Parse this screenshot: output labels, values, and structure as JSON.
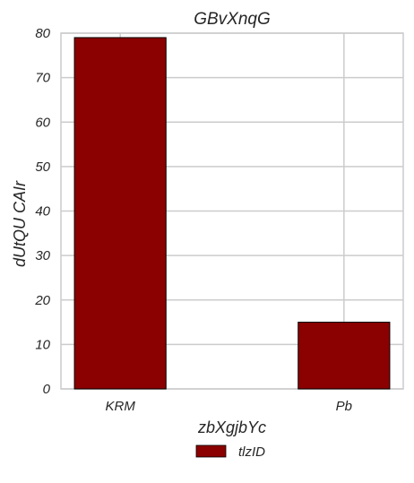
{
  "chart_data": {
    "type": "bar",
    "title": "GBvXnqG",
    "xlabel": "zbXgjbYc",
    "ylabel": "dUtQU CAIr",
    "categories": [
      "KRM",
      "Pb"
    ],
    "series": [
      {
        "name": "tlzID",
        "values": [
          79,
          15
        ],
        "color": "#8b0000"
      }
    ],
    "ylim": [
      0,
      80
    ],
    "yticks": [
      0,
      10,
      20,
      30,
      40,
      50,
      60,
      70,
      80
    ],
    "grid": true,
    "legend": "bottom-center"
  }
}
